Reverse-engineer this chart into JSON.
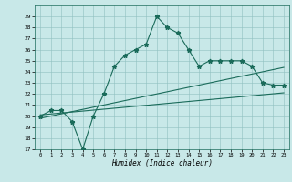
{
  "xlabel": "Humidex (Indice chaleur)",
  "ylabel": "",
  "bg_color": "#c8e8e8",
  "grid_color": "#90c0c0",
  "line_color": "#1a6b5a",
  "xlim": [
    -0.5,
    23.5
  ],
  "ylim": [
    17,
    30
  ],
  "yticks": [
    17,
    18,
    19,
    20,
    21,
    22,
    23,
    24,
    25,
    26,
    27,
    28,
    29
  ],
  "xticks": [
    0,
    1,
    2,
    3,
    4,
    5,
    6,
    7,
    8,
    9,
    10,
    11,
    12,
    13,
    14,
    15,
    16,
    17,
    18,
    19,
    20,
    21,
    22,
    23
  ],
  "main_y": [
    20,
    20.5,
    20.5,
    19.5,
    17,
    20,
    22,
    24.5,
    25.5,
    26,
    26.5,
    29,
    28,
    27.5,
    26,
    24.5,
    25,
    25,
    25,
    25,
    24.5,
    23,
    22.8,
    22.8
  ],
  "reg_line1_x": [
    0,
    23
  ],
  "reg_line1_y": [
    19.8,
    24.4
  ],
  "reg_line2_x": [
    0,
    23
  ],
  "reg_line2_y": [
    20.1,
    22.1
  ],
  "marker": "*",
  "marker_size": 3.5,
  "line_width": 0.8
}
